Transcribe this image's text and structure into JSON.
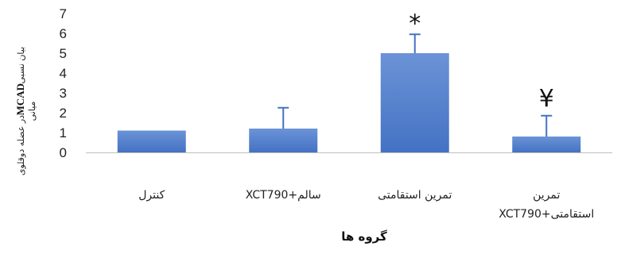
{
  "chart_data": {
    "type": "bar",
    "title": "",
    "xlabel": "گروه ها",
    "ylabel": {
      "prefix": "بیان نسبی",
      "bold": "MCAD",
      "suffix": "در عضله دوقلوی",
      "line2": "میانی"
    },
    "ylim": [
      0,
      7
    ],
    "yticks": [
      "0",
      "1",
      "2",
      "3",
      "4",
      "5",
      "6",
      "7"
    ],
    "grid": false,
    "categories": [
      {
        "line1": "کنترل",
        "line2": ""
      },
      {
        "line1": "سالم+XCT790",
        "line2": ""
      },
      {
        "line1": "تمرین استقامتی",
        "line2": ""
      },
      {
        "line1": "تمرین",
        "line2": "استقامتی+XCT790"
      }
    ],
    "values": [
      1.1,
      1.2,
      5.0,
      0.8
    ],
    "errors": [
      0,
      1.05,
      0.95,
      1.05
    ],
    "annotations": [
      "",
      "",
      "*",
      "¥"
    ],
    "bar_color": "#4472c4",
    "bar_color_light": "#6b93d6"
  }
}
